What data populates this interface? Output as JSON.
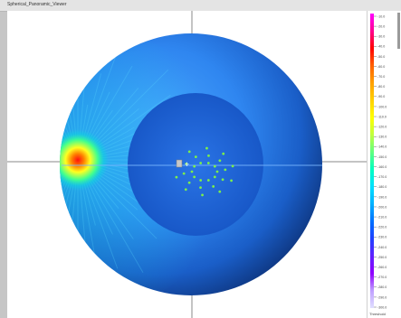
{
  "window": {
    "title": "Spherical_Panoramic_Viewer"
  },
  "viewport": {
    "description_icon": "crosshair-icon",
    "sensor_marker_count": 30,
    "hotspot_color": "#e01818",
    "background_color": "#1f6cd8"
  },
  "colorbar": {
    "tick_labels": [
      "-10.0",
      "-20.0",
      "-30.0",
      "-40.0",
      "-50.0",
      "-60.0",
      "-70.0",
      "-80.0",
      "-90.0",
      "-100.0",
      "-110.0",
      "-120.0",
      "-130.0",
      "-140.0",
      "-150.0",
      "-160.0",
      "-170.0",
      "-180.0",
      "-190.0",
      "-200.0",
      "-210.0",
      "-220.0",
      "-230.0",
      "-240.0",
      "-250.0",
      "-260.0",
      "-270.0",
      "-280.0",
      "-290.0",
      "-300.0"
    ],
    "bottom_label": "Threshold",
    "stops": [
      "#ff00ff",
      "#ff0090",
      "#ff0000",
      "#ff6000",
      "#ffa000",
      "#ffd000",
      "#ffff00",
      "#c0ff40",
      "#60ff80",
      "#00ffc0",
      "#00e0ff",
      "#00b0ff",
      "#0070ff",
      "#2040ff",
      "#6020ff",
      "#9000ff",
      "#c0a0ff",
      "#e0e0ff"
    ]
  }
}
